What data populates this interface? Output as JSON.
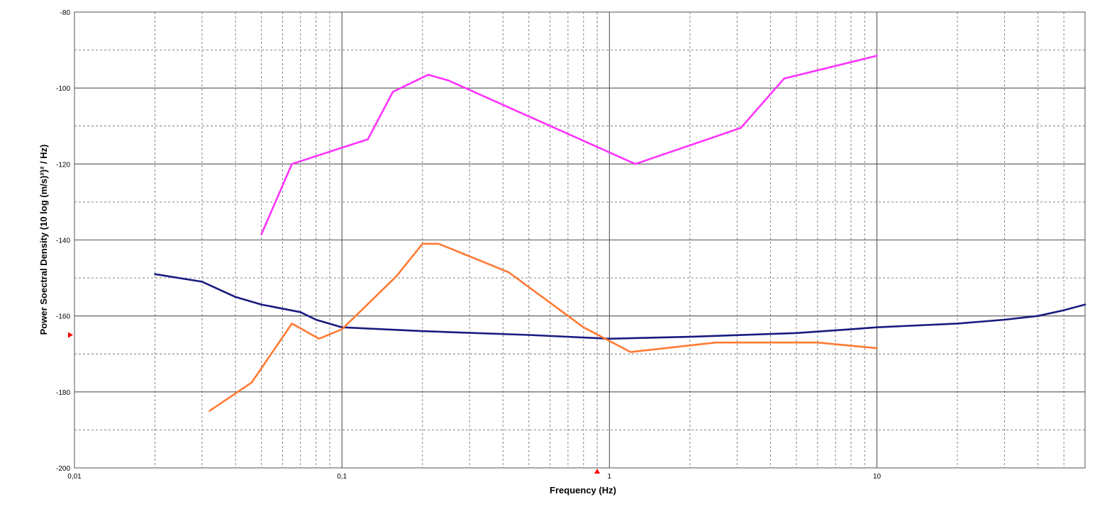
{
  "chart_data": {
    "type": "line",
    "title": "",
    "xlabel": "Frequency (Hz)",
    "ylabel": "Power Soectral Density (10 log (m/s)²)² / Hz)",
    "x_scale": "log",
    "xlim": [
      0.01,
      60
    ],
    "ylim": [
      -200,
      -80
    ],
    "x_ticks": [
      {
        "value": 0.01,
        "label": "0,01"
      },
      {
        "value": 0.1,
        "label": "0,1"
      },
      {
        "value": 1,
        "label": "1"
      },
      {
        "value": 10,
        "label": "10"
      }
    ],
    "y_ticks": [
      {
        "value": -80,
        "label": "-80"
      },
      {
        "value": -100,
        "label": "-100"
      },
      {
        "value": -120,
        "label": "-120"
      },
      {
        "value": -140,
        "label": "-140"
      },
      {
        "value": -160,
        "label": "-160"
      },
      {
        "value": -180,
        "label": "-180"
      },
      {
        "value": -200,
        "label": "-200"
      }
    ],
    "y_minor_values": [
      -90,
      -110,
      -130,
      -150,
      -170,
      -190
    ],
    "grid": true,
    "legend": "none",
    "markers": {
      "x_marker_value": 0.9,
      "y_marker_value": -165,
      "color": "#ff0000"
    },
    "series": [
      {
        "color": "#ff33ff",
        "points": [
          [
            0.05,
            -138.5
          ],
          [
            0.065,
            -120
          ],
          [
            0.125,
            -113.5
          ],
          [
            0.155,
            -101
          ],
          [
            0.21,
            -96.5
          ],
          [
            0.25,
            -98
          ],
          [
            1.25,
            -120
          ],
          [
            3.1,
            -110.5
          ],
          [
            4.5,
            -97.5
          ],
          [
            10,
            -91.5
          ]
        ]
      },
      {
        "color": "#1a1a80",
        "points": [
          [
            0.02,
            -149
          ],
          [
            0.03,
            -151
          ],
          [
            0.04,
            -155
          ],
          [
            0.05,
            -157
          ],
          [
            0.07,
            -159
          ],
          [
            0.08,
            -161
          ],
          [
            0.1,
            -163
          ],
          [
            0.2,
            -164
          ],
          [
            0.5,
            -165
          ],
          [
            1,
            -166
          ],
          [
            2,
            -165.5
          ],
          [
            5,
            -164.5
          ],
          [
            8,
            -163.5
          ],
          [
            10,
            -163
          ],
          [
            20,
            -162
          ],
          [
            30,
            -161
          ],
          [
            40,
            -160
          ],
          [
            50,
            -158.5
          ],
          [
            60,
            -157
          ]
        ]
      },
      {
        "color": "#ff7a33",
        "points": [
          [
            0.032,
            -185
          ],
          [
            0.046,
            -177.5
          ],
          [
            0.065,
            -162
          ],
          [
            0.082,
            -166
          ],
          [
            0.1,
            -163.5
          ],
          [
            0.16,
            -149.5
          ],
          [
            0.2,
            -141
          ],
          [
            0.23,
            -141
          ],
          [
            0.42,
            -148.5
          ],
          [
            0.8,
            -163
          ],
          [
            1.2,
            -169.5
          ],
          [
            2.5,
            -167
          ],
          [
            6,
            -167
          ],
          [
            10,
            -168.5
          ]
        ]
      }
    ]
  }
}
